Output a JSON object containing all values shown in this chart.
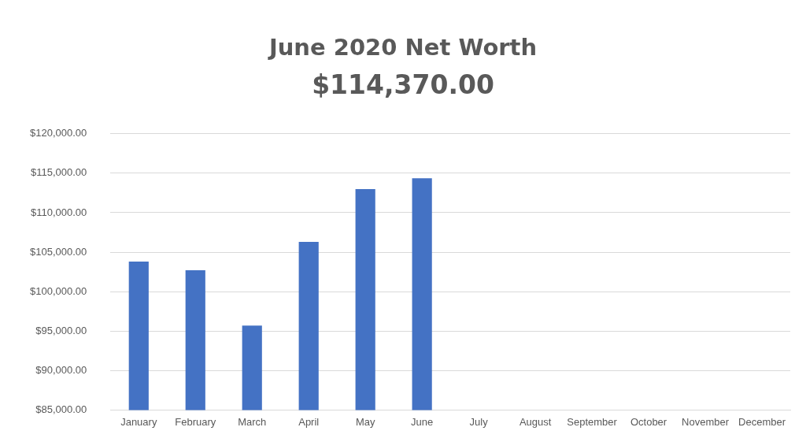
{
  "chart_data": {
    "type": "bar",
    "title": "June 2020 Net Worth",
    "subtitle": "$114,370.00",
    "categories": [
      "January",
      "February",
      "March",
      "April",
      "May",
      "June",
      "July",
      "August",
      "September",
      "October",
      "November",
      "December"
    ],
    "values": [
      103800,
      102700,
      95700,
      106300,
      113000,
      114370,
      null,
      null,
      null,
      null,
      null,
      null
    ],
    "color": "#4472c4",
    "ylim": [
      85000,
      120000
    ],
    "yticks": [
      {
        "value": 85000,
        "label": "$85,000.00"
      },
      {
        "value": 90000,
        "label": "$90,000.00"
      },
      {
        "value": 95000,
        "label": "$95,000.00"
      },
      {
        "value": 100000,
        "label": "$100,000.00"
      },
      {
        "value": 105000,
        "label": "$105,000.00"
      },
      {
        "value": 110000,
        "label": "$110,000.00"
      },
      {
        "value": 115000,
        "label": "$115,000.00"
      },
      {
        "value": 120000,
        "label": "$120,000.00"
      }
    ],
    "grid": "y",
    "legend": false
  }
}
